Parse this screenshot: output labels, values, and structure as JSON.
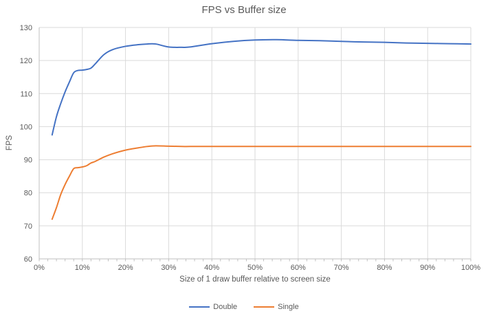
{
  "title": "FPS vs Buffer size",
  "style": {
    "background": "#FFFFFF",
    "grid_color": "#DADADA",
    "axis_color": "#BFBFBF",
    "text_color": "#595959",
    "title_color": "#595959",
    "series_blue": "#4472C4",
    "series_orange": "#ED7D31"
  },
  "chart_data": {
    "type": "line",
    "title": "FPS vs Buffer size",
    "xlabel": "Size of 1 draw buffer relative to screen size",
    "ylabel": "FPS",
    "xlim": [
      0,
      100
    ],
    "ylim": [
      60,
      130
    ],
    "x_tick_values": [
      0,
      10,
      20,
      30,
      40,
      50,
      60,
      70,
      80,
      90,
      100
    ],
    "x_tick_labels": [
      "0%",
      "10%",
      "20%",
      "30%",
      "40%",
      "50%",
      "60%",
      "70%",
      "80%",
      "90%",
      "100%"
    ],
    "x_minor_tick_step": 2,
    "y_tick_values": [
      60,
      70,
      80,
      90,
      100,
      110,
      120,
      130
    ],
    "y_tick_labels": [
      "60",
      "70",
      "80",
      "90",
      "100",
      "110",
      "120",
      "130"
    ],
    "grid": "major",
    "smooth_lines": true,
    "legend_position": "bottom",
    "series": [
      {
        "name": "Double",
        "color": "#4472C4",
        "points": [
          [
            3,
            97.5
          ],
          [
            4,
            103
          ],
          [
            5,
            107
          ],
          [
            6,
            110.5
          ],
          [
            7,
            113.5
          ],
          [
            8,
            116.3
          ],
          [
            9,
            117
          ],
          [
            10,
            117.1
          ],
          [
            11,
            117.3
          ],
          [
            12,
            117.7
          ],
          [
            13,
            119
          ],
          [
            15,
            121.8
          ],
          [
            17,
            123.3
          ],
          [
            20,
            124.3
          ],
          [
            23,
            124.8
          ],
          [
            25,
            125
          ],
          [
            27,
            125
          ],
          [
            30,
            124.1
          ],
          [
            33,
            124
          ],
          [
            35,
            124.1
          ],
          [
            40,
            125.1
          ],
          [
            45,
            125.8
          ],
          [
            50,
            126.2
          ],
          [
            55,
            126.3
          ],
          [
            60,
            126.1
          ],
          [
            65,
            126
          ],
          [
            70,
            125.8
          ],
          [
            75,
            125.6
          ],
          [
            80,
            125.5
          ],
          [
            85,
            125.3
          ],
          [
            90,
            125.2
          ],
          [
            95,
            125.1
          ],
          [
            100,
            125
          ]
        ]
      },
      {
        "name": "Single",
        "color": "#ED7D31",
        "points": [
          [
            3,
            72
          ],
          [
            4,
            75.5
          ],
          [
            5,
            79.5
          ],
          [
            6,
            82.5
          ],
          [
            7,
            85
          ],
          [
            8,
            87.3
          ],
          [
            9,
            87.6
          ],
          [
            10,
            87.8
          ],
          [
            11,
            88.2
          ],
          [
            12,
            89
          ],
          [
            13,
            89.5
          ],
          [
            15,
            90.8
          ],
          [
            17,
            91.8
          ],
          [
            20,
            92.9
          ],
          [
            23,
            93.6
          ],
          [
            25,
            94
          ],
          [
            27,
            94.2
          ],
          [
            30,
            94.1
          ],
          [
            33,
            94
          ],
          [
            35,
            94
          ],
          [
            40,
            94
          ],
          [
            45,
            94
          ],
          [
            50,
            94
          ],
          [
            55,
            94
          ],
          [
            60,
            94
          ],
          [
            65,
            94
          ],
          [
            70,
            94
          ],
          [
            75,
            94
          ],
          [
            80,
            94
          ],
          [
            85,
            94
          ],
          [
            90,
            94
          ],
          [
            95,
            94
          ],
          [
            100,
            94
          ]
        ]
      }
    ]
  }
}
